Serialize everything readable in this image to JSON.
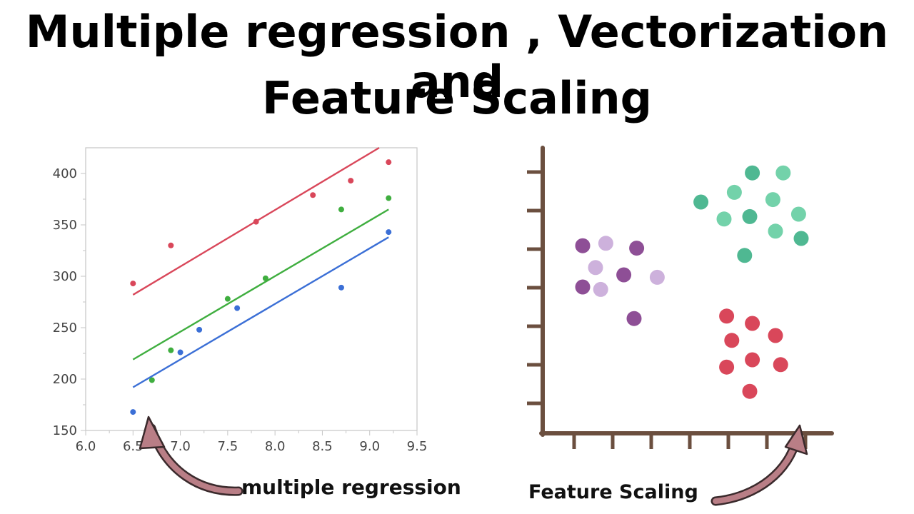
{
  "title": {
    "line1": "Multiple regression , Vectorization and",
    "line2": "Feature Scaling"
  },
  "captions": {
    "left": "multiple regression",
    "right": "Feature Scaling"
  },
  "arrow_color": "#b97e86",
  "chart_data": [
    {
      "type": "scatter",
      "title": "",
      "xlabel": "",
      "ylabel": "",
      "xlim": [
        6.0,
        9.5
      ],
      "ylim": [
        150,
        425
      ],
      "xticks": [
        "6.0",
        "6.5",
        "7.0",
        "7.5",
        "8.0",
        "8.5",
        "9.0",
        "9.5"
      ],
      "yticks": [
        "150",
        "200",
        "250",
        "300",
        "350",
        "400"
      ],
      "grid": false,
      "series": [
        {
          "color": "#d9475a",
          "points": [
            [
              6.5,
              293
            ],
            [
              6.9,
              330
            ],
            [
              7.8,
              353
            ],
            [
              8.4,
              379
            ],
            [
              8.8,
              393
            ],
            [
              9.2,
              411
            ]
          ],
          "fit_line": [
            [
              6.5,
              282
            ],
            [
              9.1,
              425
            ]
          ]
        },
        {
          "color": "#3fae3f",
          "points": [
            [
              6.7,
              199
            ],
            [
              6.9,
              228
            ],
            [
              7.5,
              278
            ],
            [
              7.9,
              298
            ],
            [
              8.7,
              365
            ],
            [
              9.2,
              376
            ]
          ],
          "fit_line": [
            [
              6.5,
              219
            ],
            [
              9.2,
              365
            ]
          ]
        },
        {
          "color": "#3b6fd6",
          "points": [
            [
              6.5,
              168
            ],
            [
              7.0,
              226
            ],
            [
              7.2,
              248
            ],
            [
              7.6,
              269
            ],
            [
              8.7,
              289
            ],
            [
              9.2,
              343
            ]
          ],
          "fit_line": [
            [
              6.5,
              192
            ],
            [
              9.2,
              338
            ]
          ]
        }
      ]
    },
    {
      "type": "scatter",
      "title": "",
      "xlabel": "",
      "ylabel": "",
      "grid": false,
      "axis_color": "#6b4f3f",
      "clusters": [
        {
          "name": "purple",
          "points": [
            {
              "x": 1.0,
              "y": 7.2,
              "color": "#8e4f96"
            },
            {
              "x": 1.9,
              "y": 7.3,
              "color": "#cdb1dc"
            },
            {
              "x": 3.1,
              "y": 7.1,
              "color": "#8e4f96"
            },
            {
              "x": 1.5,
              "y": 6.3,
              "color": "#cdb1dc"
            },
            {
              "x": 2.6,
              "y": 6.0,
              "color": "#8e4f96"
            },
            {
              "x": 3.9,
              "y": 5.9,
              "color": "#cdb1dc"
            },
            {
              "x": 1.0,
              "y": 5.5,
              "color": "#8e4f96"
            },
            {
              "x": 1.7,
              "y": 5.4,
              "color": "#cdb1dc"
            },
            {
              "x": 3.0,
              "y": 4.2,
              "color": "#8e4f96"
            }
          ]
        },
        {
          "name": "teal",
          "points": [
            {
              "x": 7.6,
              "y": 10.2,
              "color": "#4fb892"
            },
            {
              "x": 8.8,
              "y": 10.2,
              "color": "#73d2aa"
            },
            {
              "x": 6.9,
              "y": 9.4,
              "color": "#73d2aa"
            },
            {
              "x": 5.6,
              "y": 9.0,
              "color": "#4fb892"
            },
            {
              "x": 8.4,
              "y": 9.1,
              "color": "#73d2aa"
            },
            {
              "x": 6.5,
              "y": 8.3,
              "color": "#73d2aa"
            },
            {
              "x": 7.5,
              "y": 8.4,
              "color": "#4fb892"
            },
            {
              "x": 9.4,
              "y": 8.5,
              "color": "#73d2aa"
            },
            {
              "x": 8.5,
              "y": 7.8,
              "color": "#73d2aa"
            },
            {
              "x": 7.3,
              "y": 6.8,
              "color": "#4fb892"
            },
            {
              "x": 9.5,
              "y": 7.5,
              "color": "#4fb892"
            }
          ]
        },
        {
          "name": "red",
          "points": [
            {
              "x": 6.6,
              "y": 4.3,
              "color": "#d9475a"
            },
            {
              "x": 7.6,
              "y": 4.0,
              "color": "#d9475a"
            },
            {
              "x": 6.8,
              "y": 3.3,
              "color": "#d9475a"
            },
            {
              "x": 8.5,
              "y": 3.5,
              "color": "#d9475a"
            },
            {
              "x": 7.6,
              "y": 2.5,
              "color": "#d9475a"
            },
            {
              "x": 6.6,
              "y": 2.2,
              "color": "#d9475a"
            },
            {
              "x": 8.7,
              "y": 2.3,
              "color": "#d9475a"
            },
            {
              "x": 7.5,
              "y": 1.2,
              "color": "#d9475a"
            }
          ]
        }
      ]
    }
  ]
}
